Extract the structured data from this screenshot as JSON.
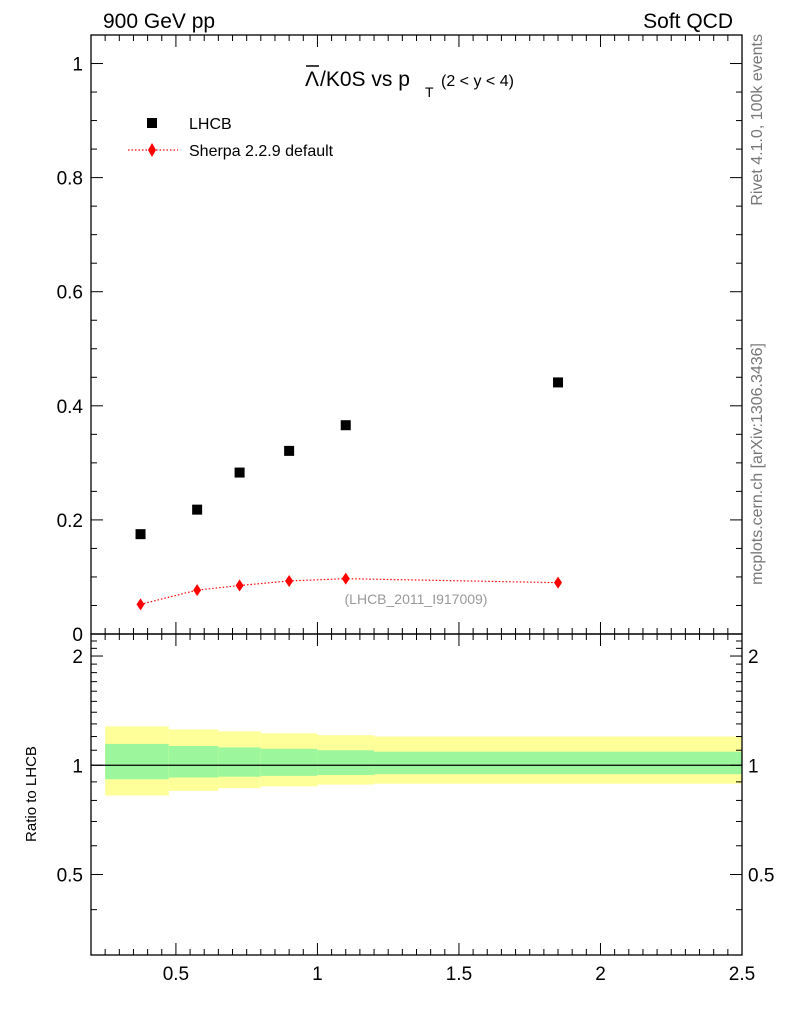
{
  "header": {
    "left_label": "900 GeV pp",
    "right_label": "Soft QCD"
  },
  "side": {
    "rivet_label": "Rivet 4.1.0,  100k events",
    "source_label": "mcplots.cern.ch [arXiv:1306.3436]"
  },
  "chart_data": {
    "type": "scatter",
    "title": {
      "main": "/K0S vs p",
      "lambda_symbol": "Λ",
      "subscript": "T",
      "range_note": "(2 < y < 4)"
    },
    "analysis_id": "(LHCB_2011_I917009)",
    "x": [
      0.375,
      0.575,
      0.725,
      0.9,
      1.1,
      1.85
    ],
    "xlim": [
      0.2,
      2.5
    ],
    "ylim": [
      0,
      1.05
    ],
    "ratio_ylim": [
      0.3,
      2.3
    ],
    "ylabel_ratio": "Ratio to LHCB",
    "main_yticks": [
      "0",
      "0.2",
      "0.4",
      "0.6",
      "0.8",
      "1"
    ],
    "ratio_yticks": [
      "0.5",
      "1",
      "2"
    ],
    "xticks": [
      "0.5",
      "1",
      "1.5",
      "2",
      "2.5"
    ],
    "legend_position": "top-left",
    "series": [
      {
        "name": "LHCB",
        "marker": "square",
        "color": "#000000",
        "values": [
          0.175,
          0.218,
          0.283,
          0.321,
          0.366,
          0.441
        ]
      },
      {
        "name": "Sherpa 2.2.9 default",
        "marker": "diamond",
        "line": "dotted",
        "color": "#ff0000",
        "values": [
          0.052,
          0.077,
          0.085,
          0.093,
          0.097,
          0.09
        ]
      }
    ],
    "ratio_bands": {
      "edges": [
        0.25,
        0.475,
        0.65,
        0.8,
        1.0,
        1.2,
        2.5
      ],
      "stat_low": [
        0.915,
        0.925,
        0.93,
        0.935,
        0.94,
        0.945
      ],
      "stat_high": [
        1.145,
        1.13,
        1.12,
        1.11,
        1.1,
        1.09
      ],
      "total_low": [
        0.825,
        0.85,
        0.865,
        0.875,
        0.885,
        0.89
      ],
      "total_high": [
        1.28,
        1.255,
        1.24,
        1.225,
        1.21,
        1.2
      ],
      "stat_color": "#9cf79c",
      "total_color": "#ffff99"
    }
  }
}
